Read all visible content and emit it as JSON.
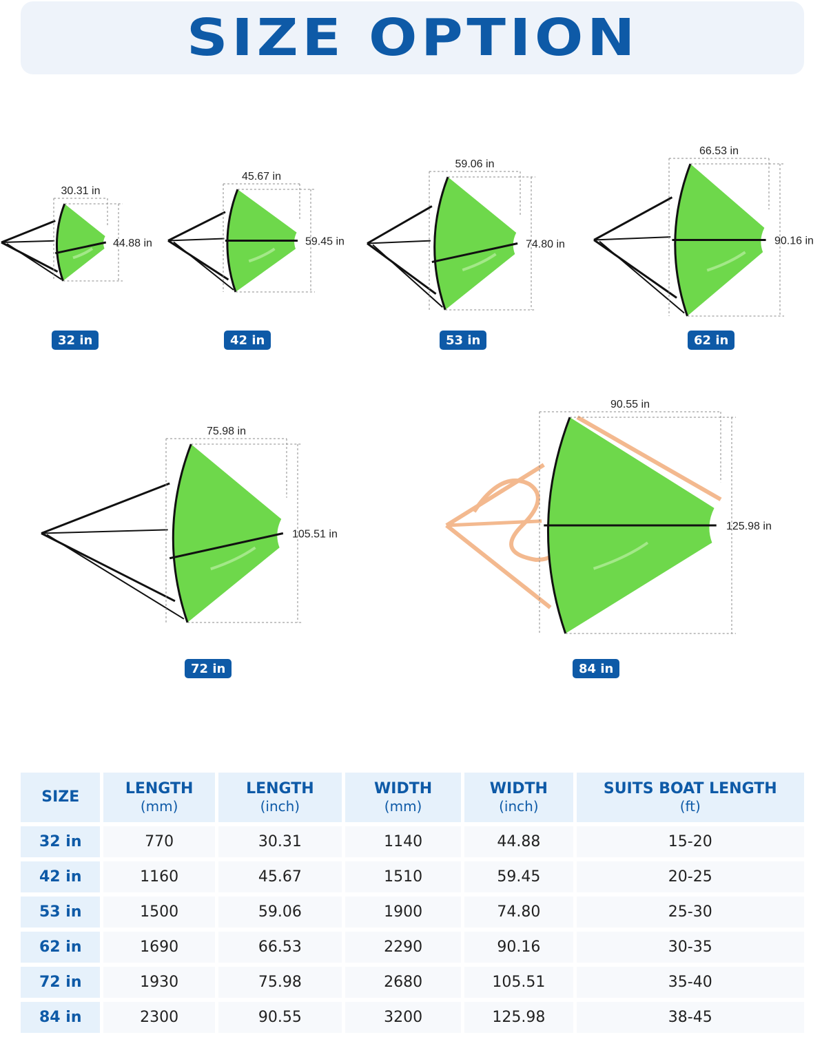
{
  "header": {
    "title": "SIZE OPTION"
  },
  "figures": [
    {
      "badge": "32 in",
      "length_label": "30.31 in",
      "width_label": "44.88 in",
      "strap": "black"
    },
    {
      "badge": "42 in",
      "length_label": "45.67 in",
      "width_label": "59.45 in",
      "strap": "black"
    },
    {
      "badge": "53 in",
      "length_label": "59.06 in",
      "width_label": "74.80 in",
      "strap": "black"
    },
    {
      "badge": "62 in",
      "length_label": "66.53 in",
      "width_label": "90.16 in",
      "strap": "black"
    },
    {
      "badge": "72 in",
      "length_label": "75.98 in",
      "width_label": "105.51 in",
      "strap": "black"
    },
    {
      "badge": "84 in",
      "length_label": "90.55 in",
      "width_label": "125.98 in",
      "strap": "orange"
    }
  ],
  "colors": {
    "accent": "#0e5aa7",
    "anchor_green": "#6ed84b",
    "header_bg": "#e6f1fb",
    "banner_bg": "#eef3fa",
    "orange_strap": "#f3b98f"
  },
  "table": {
    "headers": [
      {
        "main": "SIZE",
        "sub": ""
      },
      {
        "main": "LENGTH",
        "sub": "(mm)"
      },
      {
        "main": "LENGTH",
        "sub": "(inch)"
      },
      {
        "main": "WIDTH",
        "sub": "(mm)"
      },
      {
        "main": "WIDTH",
        "sub": "(inch)"
      },
      {
        "main": "SUITS BOAT LENGTH",
        "sub": "(ft)"
      }
    ],
    "rows": [
      [
        "32 in",
        "770",
        "30.31",
        "1140",
        "44.88",
        "15-20"
      ],
      [
        "42 in",
        "1160",
        "45.67",
        "1510",
        "59.45",
        "20-25"
      ],
      [
        "53 in",
        "1500",
        "59.06",
        "1900",
        "74.80",
        "25-30"
      ],
      [
        "62 in",
        "1690",
        "66.53",
        "2290",
        "90.16",
        "30-35"
      ],
      [
        "72 in",
        "1930",
        "75.98",
        "2680",
        "105.51",
        "35-40"
      ],
      [
        "84 in",
        "2300",
        "90.55",
        "3200",
        "125.98",
        "38-45"
      ]
    ]
  }
}
